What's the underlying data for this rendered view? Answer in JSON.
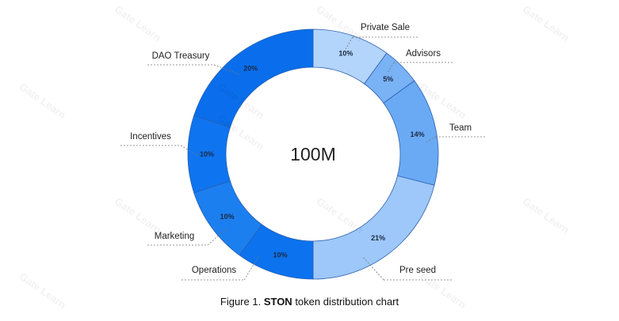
{
  "chart_data": {
    "type": "pie",
    "style": "donut",
    "center_label": "100M",
    "slices": [
      {
        "label": "Private Sale",
        "value": 10,
        "pct_label": "10%",
        "color": "#b3d4fb"
      },
      {
        "label": "Advisors",
        "value": 5,
        "pct_label": "5%",
        "color": "#79b2f5"
      },
      {
        "label": "Team",
        "value": 14,
        "pct_label": "14%",
        "color": "#6aaaf5"
      },
      {
        "label": "Pre seed",
        "value": 21,
        "pct_label": "21%",
        "color": "#9ec8fa"
      },
      {
        "label": "Operations",
        "value": 10,
        "pct_label": "10%",
        "color": "#0c72ee"
      },
      {
        "label": "Marketing",
        "value": 10,
        "pct_label": "10%",
        "color": "#1c7ff0"
      },
      {
        "label": "Incentives",
        "value": 10,
        "pct_label": "10%",
        "color": "#0f74ef"
      },
      {
        "label": "DAO Treasury",
        "value": 20,
        "pct_label": "20%",
        "color": "#0a6eec"
      }
    ]
  },
  "caption": {
    "prefix": "Figure 1. ",
    "bold": "STON",
    "suffix": " token distribution chart"
  },
  "watermark": "Gate Learn"
}
